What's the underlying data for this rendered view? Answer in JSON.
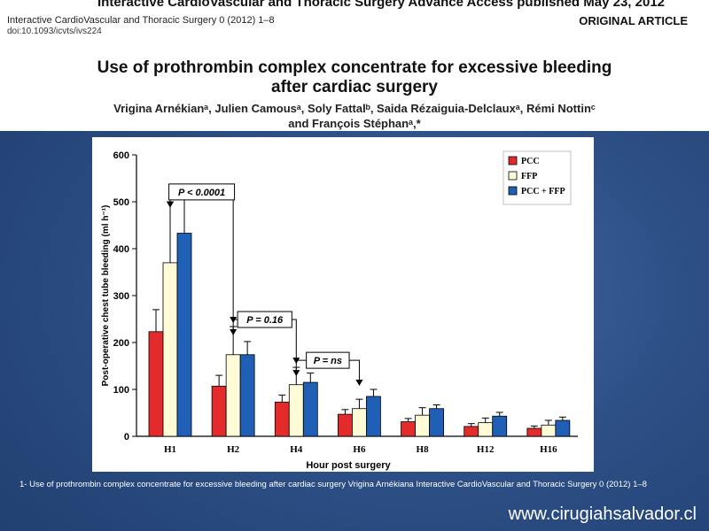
{
  "header": {
    "journal_line": "Interactive CardioVascular and Thoracic Surgery Advance Access published May 23, 2012",
    "journal_info": "Interactive CardioVascular and Thoracic Surgery 0 (2012) 1–8",
    "doi": "doi:10.1093/icvts/ivs224",
    "article_type": "ORIGINAL ARTICLE",
    "title_line1": "Use of prothrombin complex concentrate for excessive bleeding",
    "title_line2": "after cardiac surgery",
    "authors_line1": "Vrigina Arnékianᵃ, Julien Camousᵃ, Soly Fattalᵇ, Saida Rézaiguia-Delclauxᵃ, Rémi Nottinᶜ",
    "authors_line2": "and François Stéphanᵃ,*"
  },
  "caption": "1- Use of prothrombin complex concentrate for excessive bleeding after cardiac surgery Vrigina Arnékiana Interactive CardioVascular and Thoracic Surgery 0 (2012) 1–8",
  "watermark": "www.cirugiahsalvador.cl",
  "chart_data": {
    "type": "bar",
    "xlabel": "Hour post surgery",
    "ylabel": "Post-operative chest tube bleeding (ml h⁻¹)",
    "ylim": [
      0,
      600
    ],
    "yticks": [
      0,
      100,
      200,
      300,
      400,
      500,
      600
    ],
    "categories": [
      "H1",
      "H2",
      "H4",
      "H6",
      "H8",
      "H12",
      "H16"
    ],
    "legend_position": "top-right",
    "series": [
      {
        "name": "PCC",
        "color": "#e32b2b",
        "values": [
          223,
          107,
          73,
          47,
          31,
          21,
          17
        ],
        "errors": [
          47,
          23,
          15,
          10,
          7,
          6,
          5
        ]
      },
      {
        "name": "FFP",
        "color": "#fffbd6",
        "values": [
          370,
          174,
          110,
          59,
          45,
          29,
          24
        ],
        "errors": [
          130,
          60,
          37,
          20,
          16,
          10,
          10
        ]
      },
      {
        "name": "PCC + FFP",
        "color": "#1f5fb5",
        "values": [
          433,
          174,
          115,
          85,
          59,
          43,
          34
        ],
        "errors": [
          73,
          28,
          20,
          15,
          8,
          8,
          7
        ]
      }
    ],
    "annotations": [
      {
        "label": "P < 0.0001",
        "from": 0,
        "to": 1
      },
      {
        "label": "P = 0.16",
        "from": 1,
        "to": 2
      },
      {
        "label": "P = ns",
        "from": 2,
        "to": 3
      }
    ]
  }
}
